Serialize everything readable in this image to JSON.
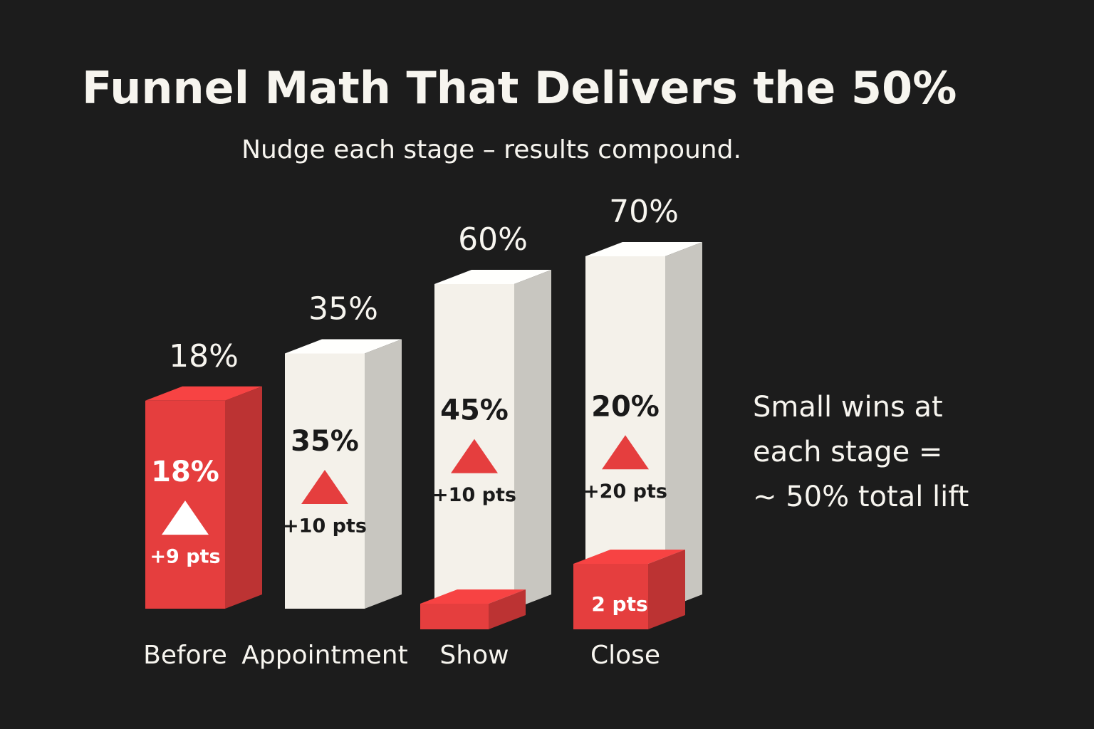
{
  "chart_data": {
    "type": "bar",
    "title": "Funnel Math That Delivers the 50%",
    "subtitle": "Nudge each stage – results compound.",
    "categories": [
      "Before",
      "Appointment",
      "Show",
      "Close"
    ],
    "values": [
      18,
      35,
      60,
      70
    ],
    "value_labels": [
      "18%",
      "35%",
      "60%",
      "70%"
    ],
    "colors": [
      "#e53e3e",
      "#f4f1ea",
      "#f4f1ea",
      "#f4f1ea"
    ],
    "inner_labels": [
      "18%",
      "35%",
      "45%",
      "20%"
    ],
    "delta_labels": [
      "+9 pts",
      "+10 pts",
      "+10 pts",
      "+20 pts"
    ],
    "base_label": "2 pts",
    "accent_color": "#e53e3e",
    "note": [
      "Small wins at",
      "each stage =",
      "~ 50% total lift"
    ]
  }
}
